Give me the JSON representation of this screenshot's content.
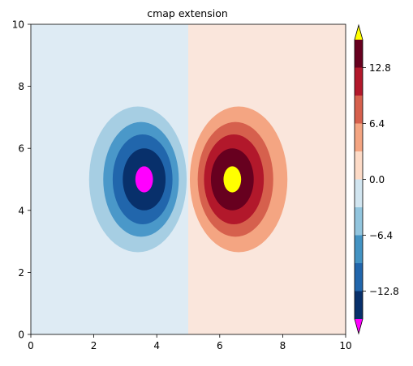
{
  "chart_data": {
    "type": "contourf",
    "title": "cmap extension",
    "xlabel": "",
    "ylabel": "",
    "xlim": [
      0,
      10
    ],
    "ylim": [
      0,
      10
    ],
    "xticks": [
      "0",
      "2",
      "4",
      "6",
      "8",
      "10"
    ],
    "yticks": [
      "0",
      "2",
      "4",
      "6",
      "8",
      "10"
    ],
    "grid": false,
    "field": {
      "description_of_values": "z(x,y) antisymmetric about x=5: negative lobe centered at (3.6,5), positive lobe centered at (6.4,5)",
      "negative_center": [
        3.6,
        5.0
      ],
      "positive_center": [
        6.4,
        5.0
      ],
      "divider_x": 5.0
    },
    "levels": [
      -16.0,
      -12.8,
      -9.6,
      -6.4,
      -3.2,
      0.0,
      3.2,
      6.4,
      9.6,
      12.8,
      16.0
    ],
    "band_colors": [
      "#08306b",
      "#2166ac",
      "#4393c3",
      "#92c5de",
      "#d1e5f0",
      "#fddbc7",
      "#f4a582",
      "#d6604d",
      "#b2182b",
      "#67001f"
    ],
    "extend_under_color": "#ff00ff",
    "extend_over_color": "#ffff00",
    "colorbar": {
      "ticks": [
        "−12.8",
        "−6.4",
        "0.0",
        "6.4",
        "12.8"
      ],
      "tick_values": [
        -12.8,
        -6.4,
        0.0,
        6.4,
        12.8
      ],
      "extend": "both"
    },
    "contours": {
      "background_left": "#deebf4",
      "background_right": "#fae6dc",
      "negative_lobe": [
        {
          "level": -6.4,
          "color": "#a6cee3",
          "cx": 3.4,
          "cy": 5.0,
          "rx": 1.55,
          "ry": 2.35
        },
        {
          "level": -9.6,
          "color": "#4a98c9",
          "cx": 3.5,
          "cy": 5.0,
          "rx": 1.2,
          "ry": 1.85
        },
        {
          "level": -12.8,
          "color": "#2166ac",
          "cx": 3.55,
          "cy": 5.0,
          "rx": 0.95,
          "ry": 1.45
        },
        {
          "level": -16.0,
          "color": "#08306b",
          "cx": 3.6,
          "cy": 5.0,
          "rx": 0.68,
          "ry": 1.0
        },
        {
          "level": -19.2,
          "color": "#ff00ff",
          "cx": 3.6,
          "cy": 5.0,
          "rx": 0.28,
          "ry": 0.42
        }
      ],
      "positive_lobe": [
        {
          "level": 6.4,
          "color": "#f4a582",
          "cx": 6.6,
          "cy": 5.0,
          "rx": 1.55,
          "ry": 2.35
        },
        {
          "level": 9.6,
          "color": "#d6604d",
          "cx": 6.5,
          "cy": 5.0,
          "rx": 1.2,
          "ry": 1.85
        },
        {
          "level": 12.8,
          "color": "#b2182b",
          "cx": 6.45,
          "cy": 5.0,
          "rx": 0.95,
          "ry": 1.45
        },
        {
          "level": 16.0,
          "color": "#67001f",
          "cx": 6.4,
          "cy": 5.0,
          "rx": 0.68,
          "ry": 1.0
        },
        {
          "level": 19.2,
          "color": "#ffff00",
          "cx": 6.4,
          "cy": 5.0,
          "rx": 0.28,
          "ry": 0.42
        }
      ]
    }
  }
}
